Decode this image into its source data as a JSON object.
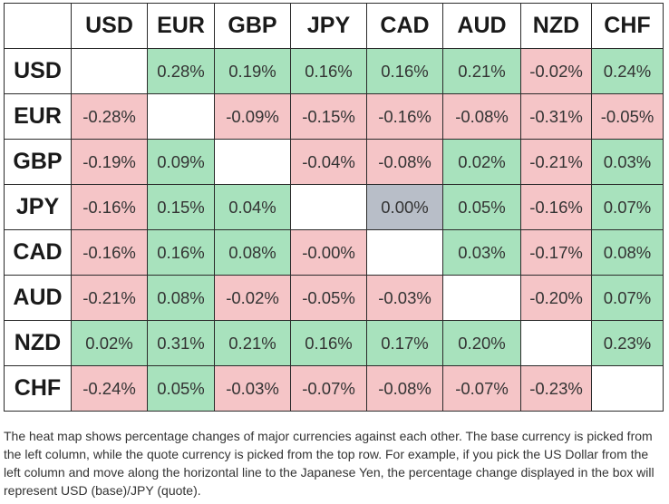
{
  "chart_data": {
    "type": "heatmap",
    "columns": [
      "USD",
      "EUR",
      "GBP",
      "JPY",
      "CAD",
      "AUD",
      "NZD",
      "CHF"
    ],
    "rows": [
      "USD",
      "EUR",
      "GBP",
      "JPY",
      "CAD",
      "AUD",
      "NZD",
      "CHF"
    ],
    "cells": [
      [
        "",
        "0.28%",
        "0.19%",
        "0.16%",
        "0.16%",
        "0.21%",
        "-0.02%",
        "0.24%"
      ],
      [
        "-0.28%",
        "",
        "-0.09%",
        "-0.15%",
        "-0.16%",
        "-0.08%",
        "-0.31%",
        "-0.05%"
      ],
      [
        "-0.19%",
        "0.09%",
        "",
        "-0.04%",
        "-0.08%",
        "0.02%",
        "-0.21%",
        "0.03%"
      ],
      [
        "-0.16%",
        "0.15%",
        "0.04%",
        "",
        "0.00%",
        "0.05%",
        "-0.16%",
        "0.07%"
      ],
      [
        "-0.16%",
        "0.16%",
        "0.08%",
        "-0.00%",
        "",
        "0.03%",
        "-0.17%",
        "0.08%"
      ],
      [
        "-0.21%",
        "0.08%",
        "-0.02%",
        "-0.05%",
        "-0.03%",
        "",
        "-0.20%",
        "0.07%"
      ],
      [
        "0.02%",
        "0.31%",
        "0.21%",
        "0.16%",
        "0.17%",
        "0.20%",
        "",
        "0.23%"
      ],
      [
        "-0.24%",
        "0.05%",
        "-0.03%",
        "-0.07%",
        "-0.08%",
        "-0.07%",
        "-0.23%",
        ""
      ]
    ],
    "colors": {
      "positive": "#a8e2bd",
      "negative": "#f5c5c7",
      "zero": "#b8bec8",
      "empty": "#ffffff"
    },
    "grid": true
  },
  "caption": "The heat map shows percentage changes of major currencies against each other. The base currency is picked from the left column, while the quote currency is picked from the top row. For example, if you pick the US Dollar from the left column and move along the horizontal line to the Japanese Yen, the percentage change displayed in the box will represent USD (base)/JPY (quote)."
}
